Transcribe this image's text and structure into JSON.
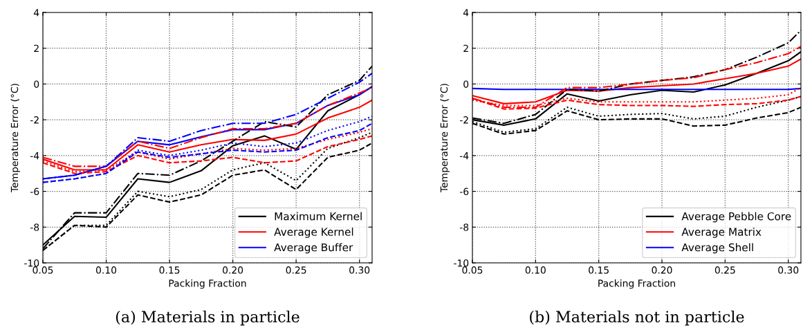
{
  "chart_data": [
    {
      "type": "line",
      "title": "(a) Materials in particle",
      "xlabel": "Packing Fraction",
      "ylabel": "Temperature Error (°C)",
      "x": [
        0.05,
        0.075,
        0.1,
        0.125,
        0.15,
        0.175,
        0.2,
        0.225,
        0.25,
        0.275,
        0.3,
        0.31
      ],
      "xlim": [
        0.05,
        0.31
      ],
      "ylim": [
        -10,
        4
      ],
      "xticks": [
        {
          "value": 0.05,
          "label": "0.05"
        },
        {
          "value": 0.1,
          "label": "0.10"
        },
        {
          "value": 0.15,
          "label": "0.15"
        },
        {
          "value": 0.2,
          "label": "0.20"
        },
        {
          "value": 0.25,
          "label": "0.25"
        },
        {
          "value": 0.3,
          "label": "0.30"
        }
      ],
      "yticks": [
        -10,
        -8,
        -6,
        -4,
        -2,
        0,
        2,
        4
      ],
      "grid": true,
      "legend": "bottom right",
      "series": [
        {
          "name": "Maximum Kernel",
          "color": "#000000",
          "line_style": "solid",
          "values": [
            -9.0,
            -7.4,
            -7.45,
            -5.3,
            -5.5,
            -4.85,
            -3.45,
            -2.9,
            -3.65,
            -1.5,
            -0.6,
            -0.15
          ]
        },
        {
          "name": "Average Kernel",
          "color": "#ff0000",
          "line_style": "solid",
          "values": [
            -4.2,
            -4.8,
            -4.8,
            -3.4,
            -3.8,
            -3.4,
            -3.1,
            -3.15,
            -2.8,
            -1.9,
            -1.3,
            -0.9
          ]
        },
        {
          "name": "Average Buffer",
          "color": "#0000ff",
          "line_style": "solid",
          "values": [
            -5.3,
            -5.1,
            -4.6,
            -3.2,
            -3.4,
            -2.95,
            -2.55,
            -2.55,
            -2.2,
            -1.2,
            -0.6,
            -0.15
          ]
        },
        {
          "color": "#000000",
          "line_style": "dashdot",
          "values": [
            -9.2,
            -7.2,
            -7.2,
            -5.0,
            -5.1,
            -4.3,
            -3.2,
            -2.1,
            -2.4,
            -0.6,
            0.2,
            1.0
          ]
        },
        {
          "color": "#000000",
          "line_style": "dotted",
          "values": [
            -9.3,
            -7.9,
            -7.9,
            -6.0,
            -6.3,
            -5.9,
            -4.8,
            -4.4,
            -5.4,
            -3.6,
            -3.0,
            -2.7
          ]
        },
        {
          "color": "#000000",
          "line_style": "dashed",
          "values": [
            -9.3,
            -7.9,
            -8.0,
            -6.2,
            -6.6,
            -6.2,
            -5.1,
            -4.8,
            -5.9,
            -4.1,
            -3.7,
            -3.3
          ]
        },
        {
          "color": "#ff0000",
          "line_style": "dashdot",
          "values": [
            -4.1,
            -4.6,
            -4.6,
            -3.2,
            -3.6,
            -3.0,
            -2.5,
            -2.5,
            -2.2,
            -1.2,
            -0.5,
            -0.2
          ]
        },
        {
          "color": "#ff0000",
          "line_style": "dotted",
          "values": [
            -4.3,
            -4.9,
            -4.8,
            -3.8,
            -4.2,
            -3.9,
            -3.6,
            -3.7,
            -3.6,
            -3.1,
            -2.7,
            -2.5
          ]
        },
        {
          "color": "#ff0000",
          "line_style": "dashed",
          "values": [
            -4.4,
            -5.0,
            -4.9,
            -4.0,
            -4.4,
            -4.3,
            -4.1,
            -4.4,
            -4.3,
            -3.5,
            -3.1,
            -2.9
          ]
        },
        {
          "color": "#0000ff",
          "line_style": "dashdot",
          "values": [
            -5.3,
            -5.1,
            -4.6,
            -3.0,
            -3.2,
            -2.6,
            -2.2,
            -2.2,
            -1.7,
            -0.8,
            0.1,
            0.6
          ]
        },
        {
          "color": "#0000ff",
          "line_style": "dotted",
          "values": [
            -5.5,
            -5.3,
            -5.0,
            -3.7,
            -4.0,
            -3.7,
            -3.3,
            -3.5,
            -3.3,
            -2.6,
            -2.1,
            -1.8
          ]
        },
        {
          "color": "#0000ff",
          "line_style": "dashed",
          "values": [
            -5.5,
            -5.3,
            -5.0,
            -3.8,
            -4.1,
            -3.9,
            -3.7,
            -3.8,
            -3.7,
            -3.0,
            -2.6,
            -2.2
          ]
        }
      ]
    },
    {
      "type": "line",
      "title": "(b) Materials not in particle",
      "xlabel": "Packing Fraction",
      "ylabel": "Temperature Error (°C)",
      "x": [
        0.05,
        0.075,
        0.1,
        0.125,
        0.15,
        0.175,
        0.2,
        0.225,
        0.25,
        0.275,
        0.3,
        0.31
      ],
      "xlim": [
        0.05,
        0.31
      ],
      "ylim": [
        -10,
        4
      ],
      "xticks": [
        {
          "value": 0.05,
          "label": "0.05"
        },
        {
          "value": 0.1,
          "label": "0.10"
        },
        {
          "value": 0.15,
          "label": "0.15"
        },
        {
          "value": 0.2,
          "label": "0.20"
        },
        {
          "value": 0.25,
          "label": "0.25"
        },
        {
          "value": 0.3,
          "label": "0.30"
        }
      ],
      "yticks": [
        -10,
        -8,
        -6,
        -4,
        -2,
        0,
        2,
        4
      ],
      "grid": true,
      "legend": "bottom right",
      "series": [
        {
          "name": "Average Pebble Core",
          "color": "#000000",
          "line_style": "solid",
          "values": [
            -2.0,
            -2.3,
            -1.95,
            -0.55,
            -0.95,
            -0.6,
            -0.35,
            -0.45,
            -0.05,
            0.6,
            1.3,
            1.8
          ]
        },
        {
          "name": "Average Matrix",
          "color": "#ff0000",
          "line_style": "solid",
          "values": [
            -0.65,
            -1.1,
            -1.0,
            -0.35,
            -0.4,
            -0.2,
            -0.1,
            0.0,
            0.3,
            0.6,
            1.0,
            1.4
          ]
        },
        {
          "name": "Average Shell",
          "color": "#0000ff",
          "line_style": "solid",
          "values": [
            -0.25,
            -0.3,
            -0.3,
            -0.3,
            -0.3,
            -0.3,
            -0.3,
            -0.3,
            -0.3,
            -0.3,
            -0.3,
            -0.25
          ]
        },
        {
          "color": "#000000",
          "line_style": "dashdot",
          "values": [
            -1.9,
            -2.2,
            -1.7,
            -0.3,
            -0.4,
            0.0,
            0.2,
            0.4,
            0.8,
            1.5,
            2.3,
            3.0
          ]
        },
        {
          "color": "#000000",
          "line_style": "dotted",
          "values": [
            -2.1,
            -2.7,
            -2.5,
            -1.3,
            -1.8,
            -1.7,
            -1.65,
            -1.95,
            -1.8,
            -1.3,
            -0.9,
            -0.7
          ]
        },
        {
          "color": "#000000",
          "line_style": "dashed",
          "values": [
            -2.2,
            -2.8,
            -2.6,
            -1.5,
            -2.0,
            -1.95,
            -1.95,
            -2.35,
            -2.3,
            -1.9,
            -1.6,
            -1.3
          ]
        },
        {
          "color": "#ff0000",
          "line_style": "dashdot",
          "values": [
            -0.8,
            -1.3,
            -1.3,
            -0.2,
            -0.2,
            0.0,
            0.2,
            0.35,
            0.8,
            1.2,
            1.7,
            2.1
          ]
        },
        {
          "color": "#ff0000",
          "line_style": "dotted",
          "values": [
            -0.9,
            -1.2,
            -1.2,
            -0.8,
            -1.0,
            -1.0,
            -1.0,
            -1.0,
            -0.9,
            -0.8,
            -0.6,
            -0.2
          ]
        },
        {
          "color": "#ff0000",
          "line_style": "dashed",
          "values": [
            -0.8,
            -1.4,
            -1.35,
            -0.9,
            -1.15,
            -1.2,
            -1.2,
            -1.25,
            -1.15,
            -1.1,
            -0.9,
            -0.7
          ]
        }
      ]
    }
  ]
}
